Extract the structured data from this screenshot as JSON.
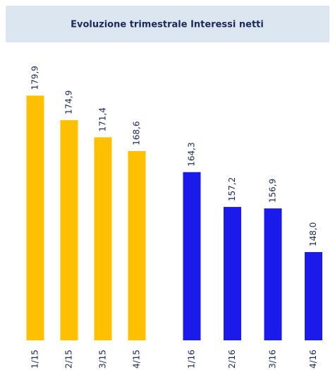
{
  "chart_data": {
    "type": "bar",
    "title": "Evoluzione trimestrale Interessi netti",
    "categories": [
      "1/15",
      "2/15",
      "3/15",
      "4/15",
      "1/16",
      "2/16",
      "3/16",
      "4/16"
    ],
    "values": [
      179.9,
      174.9,
      171.4,
      168.6,
      164.3,
      157.2,
      156.9,
      148.0
    ],
    "value_labels": [
      "179,9",
      "174,9",
      "171,4",
      "168,6",
      "164,3",
      "157,2",
      "156,9",
      "148,0"
    ],
    "colors": [
      "#ffc000",
      "#ffc000",
      "#ffc000",
      "#ffc000",
      "#1a1aeb",
      "#1a1aeb",
      "#1a1aeb",
      "#1a1aeb"
    ],
    "ylim": [
      130,
      185
    ]
  }
}
